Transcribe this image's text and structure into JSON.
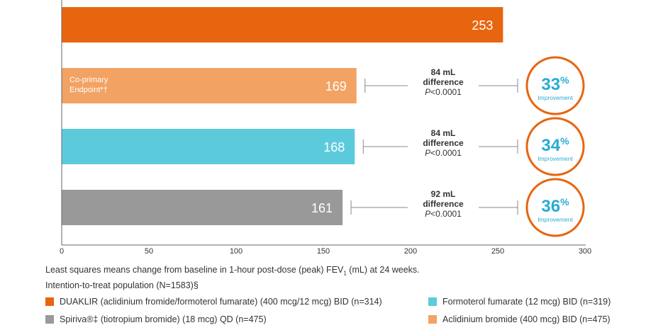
{
  "chart_data": {
    "type": "bar",
    "orientation": "horizontal",
    "xlim": [
      0,
      300
    ],
    "x_ticks": [
      "0",
      "50",
      "100",
      "150",
      "200",
      "250",
      "300"
    ],
    "categories": [
      "DUAKLIR",
      "Aclidinium bromide",
      "Formoterol fumarate",
      "Spiriva"
    ],
    "values": [
      253,
      169,
      168,
      161
    ],
    "value_labels": [
      "253",
      "169",
      "168",
      "161"
    ],
    "colors": [
      "#e8650f",
      "#f2a263",
      "#5bcbdc",
      "#999999"
    ],
    "endpoint_label": [
      "Co-primary",
      "Endpoint*†"
    ],
    "comparisons": [
      {
        "lines": [
          "84 mL",
          "difference"
        ],
        "p_italic": "P",
        "p_rest": "<0.0001",
        "pct_num": "33",
        "pct_sign": "%",
        "pct_label": "Improvement"
      },
      {
        "lines": [
          "84 mL",
          "difference"
        ],
        "p_italic": "P",
        "p_rest": "<0.0001",
        "pct_num": "34",
        "pct_sign": "%",
        "pct_label": "Improvement"
      },
      {
        "lines": [
          "92 mL",
          "difference"
        ],
        "p_italic": "P",
        "p_rest": "<0.0001",
        "pct_num": "36",
        "pct_sign": "%",
        "pct_label": "Improvement"
      }
    ],
    "accent_color": "#e8650f",
    "highlight_color": "#29abd4",
    "grid": false
  },
  "caption": {
    "line1_a": "Least squares means change from baseline in 1-hour post-dose (peak) FEV",
    "line1_sub": "1",
    "line1_b": " (mL) at 24 weeks.",
    "line2": "Intention-to-treat population (N=1583)§"
  },
  "legend": {
    "duaklir": {
      "label": "DUAKLIR (aclidinium fromide/formoterol fumarate) (400 mcg/12 mcg) BID (n=314)",
      "color": "#e8650f"
    },
    "formoterol": {
      "label": "Formoterol fumarate (12 mcg) BID (n=319)",
      "color": "#5bcbdc"
    },
    "spiriva": {
      "label": "Spiriva®‡ (tiotropium bromide) (18 mcg) QD (n=475)",
      "color": "#999999"
    },
    "aclidinium": {
      "label": "Aclidinium bromide (400 mcg) BID (n=475)",
      "color": "#f2a263"
    }
  }
}
